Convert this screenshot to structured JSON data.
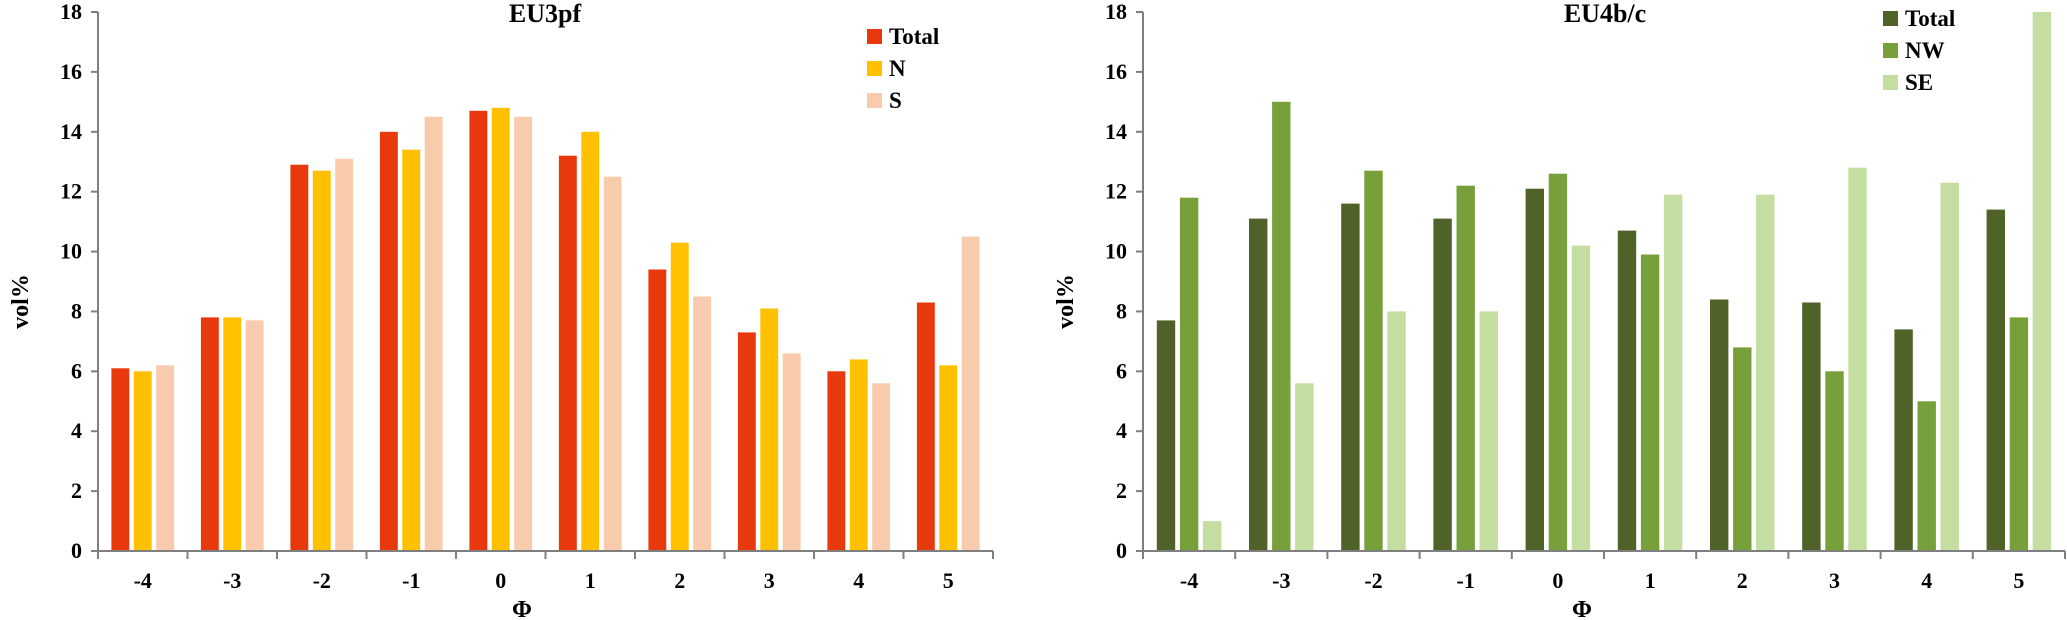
{
  "chart_data": [
    {
      "type": "bar",
      "title": "EU3pf",
      "xlabel": "Φ",
      "ylabel": "vol%",
      "ylim": [
        0,
        18
      ],
      "yticks": [
        "0",
        "2",
        "4",
        "6",
        "8",
        "10",
        "12",
        "14",
        "16",
        "18"
      ],
      "categories": [
        "-4",
        "-3",
        "-2",
        "-1",
        "0",
        "1",
        "2",
        "3",
        "4",
        "5"
      ],
      "legend_position": "top-right",
      "grid": false,
      "series": [
        {
          "name": "Total",
          "color": "#e8380d",
          "values": [
            6.1,
            7.8,
            12.9,
            14.0,
            14.7,
            13.2,
            9.4,
            7.3,
            6.0,
            8.3
          ]
        },
        {
          "name": "N",
          "color": "#ffc000",
          "values": [
            6.0,
            7.8,
            12.7,
            13.4,
            14.8,
            14.0,
            10.3,
            8.1,
            6.4,
            6.2
          ]
        },
        {
          "name": "S",
          "color": "#f8cbad",
          "values": [
            6.2,
            7.7,
            13.1,
            14.5,
            14.5,
            12.5,
            8.5,
            6.6,
            5.6,
            10.5
          ]
        }
      ]
    },
    {
      "type": "bar",
      "title": "EU4b/c",
      "xlabel": "Φ",
      "ylabel": "vol%",
      "ylim": [
        0,
        18
      ],
      "yticks": [
        "0",
        "2",
        "4",
        "6",
        "8",
        "10",
        "12",
        "14",
        "16",
        "18"
      ],
      "categories": [
        "-4",
        "-3",
        "-2",
        "-1",
        "0",
        "1",
        "2",
        "3",
        "4",
        "5"
      ],
      "legend_position": "top-right",
      "grid": false,
      "series": [
        {
          "name": "Total",
          "color": "#4f6228",
          "values": [
            7.7,
            11.1,
            11.6,
            11.1,
            12.1,
            10.7,
            8.4,
            8.3,
            7.4,
            11.4
          ]
        },
        {
          "name": "NW",
          "color": "#77a03a",
          "values": [
            11.8,
            15.0,
            12.7,
            12.2,
            12.6,
            9.9,
            6.8,
            6.0,
            5.0,
            7.8
          ]
        },
        {
          "name": "SE",
          "color": "#c3dea0",
          "values": [
            1.0,
            5.6,
            8.0,
            8.0,
            10.2,
            11.9,
            11.9,
            12.8,
            12.3,
            18.0
          ]
        }
      ]
    }
  ]
}
